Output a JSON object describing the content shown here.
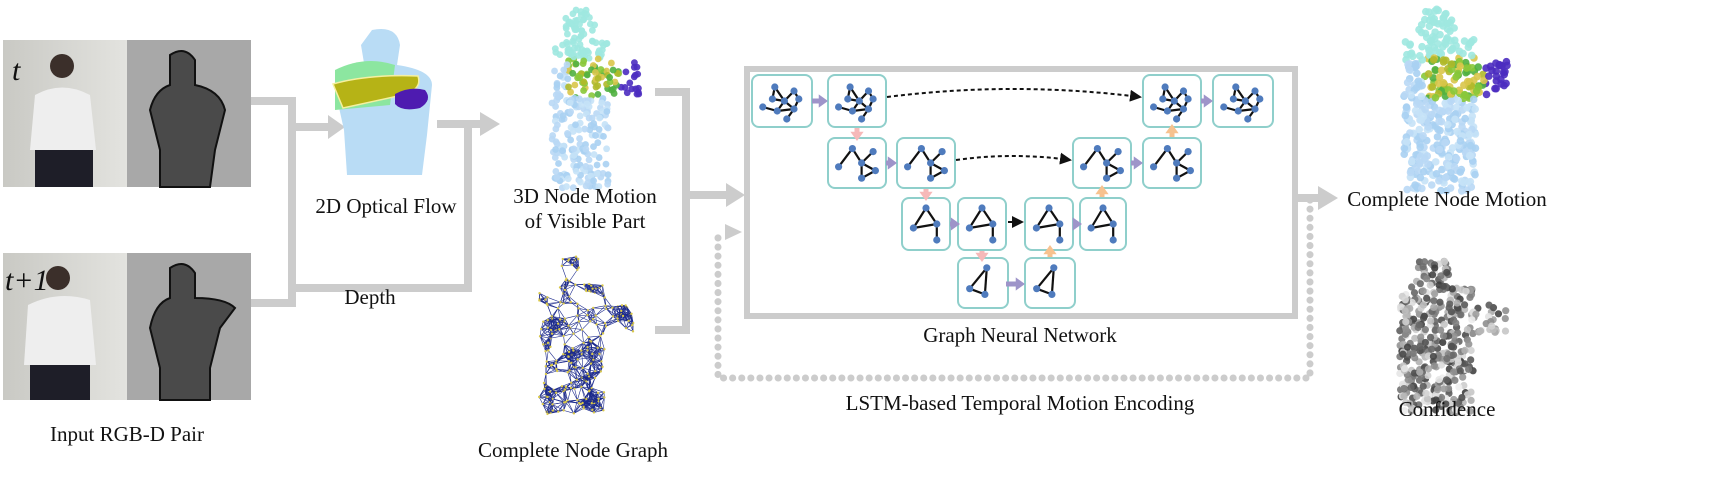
{
  "labels": {
    "input": "Input RGB-D Pair",
    "time_t": "t",
    "time_t1": "t+1",
    "optical_flow": "2D Optical Flow",
    "depth": "Depth",
    "node_motion_line1": "3D Node Motion",
    "node_motion_line2": "of Visible Part",
    "node_graph": "Complete Node Graph",
    "gnn": "Graph Neural Network",
    "lstm": "LSTM-based Temporal Motion Encoding",
    "complete_motion": "Complete Node Motion",
    "confidence": "Confidence"
  },
  "colors": {
    "connector": "#cccccc",
    "panel_border": "#8fcfcb",
    "node": "#4f7bbd",
    "down_arrow": "#f6b9b9",
    "up_arrow": "#f7c28f",
    "lateral_arrow": "#9e94c9",
    "mesh": "#1c2a8c"
  }
}
